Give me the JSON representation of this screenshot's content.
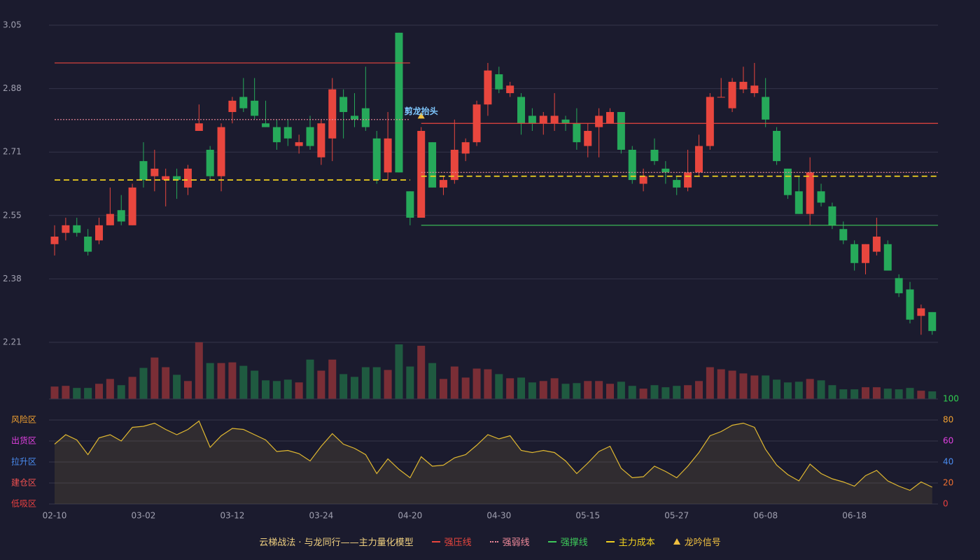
{
  "chart_data": [
    {
      "type": "candlestick",
      "ylim": [
        2.21,
        3.05
      ],
      "yticks": [
        3.05,
        {
          "value": 2.882,
          "label": "2.88"
        },
        {
          "value": 2.714,
          "label": "2.71"
        },
        {
          "value": 2.546,
          "label": "2.55"
        },
        {
          "value": 2.378,
          "label": "2.38"
        },
        2.21
      ],
      "grid": true,
      "up_color": "#e8463e",
      "down_color": "#26a95a",
      "open": [
        2.47,
        2.5,
        2.52,
        2.49,
        2.48,
        2.52,
        2.56,
        2.52,
        2.69,
        2.65,
        2.64,
        2.65,
        2.62,
        2.77,
        2.72,
        2.65,
        2.82,
        2.86,
        2.85,
        2.79,
        2.78,
        2.78,
        2.73,
        2.78,
        2.7,
        2.75,
        2.86,
        2.81,
        2.83,
        2.75,
        2.66,
        3.03,
        2.61,
        2.54,
        2.74,
        2.62,
        2.64,
        2.71,
        2.74,
        2.84,
        2.92,
        2.87,
        2.86,
        2.81,
        2.79,
        2.79,
        2.8,
        2.79,
        2.73,
        2.78,
        2.79,
        2.82,
        2.72,
        2.63,
        2.72,
        2.67,
        2.64,
        2.62,
        2.66,
        2.73,
        2.86,
        2.83,
        2.88,
        2.87,
        2.86,
        2.77,
        2.67,
        2.61,
        2.55,
        2.61,
        2.57,
        2.51,
        2.47,
        2.42,
        2.45,
        2.47,
        2.38,
        2.35,
        2.28,
        2.29
      ],
      "high": [
        2.52,
        2.54,
        2.54,
        2.51,
        2.54,
        2.62,
        2.6,
        2.63,
        2.74,
        2.72,
        2.67,
        2.67,
        2.68,
        2.84,
        2.73,
        2.79,
        2.86,
        2.91,
        2.91,
        2.85,
        2.8,
        2.8,
        2.76,
        2.81,
        2.8,
        2.91,
        2.88,
        2.87,
        2.94,
        2.77,
        2.82,
        3.03,
        2.61,
        2.78,
        2.74,
        2.65,
        2.8,
        2.75,
        2.85,
        2.95,
        2.94,
        2.9,
        2.87,
        2.83,
        2.82,
        2.87,
        2.81,
        2.83,
        2.79,
        2.83,
        2.83,
        2.82,
        2.73,
        2.67,
        2.75,
        2.69,
        2.65,
        2.72,
        2.76,
        2.87,
        2.91,
        2.91,
        2.94,
        2.95,
        2.91,
        2.78,
        2.67,
        2.65,
        2.7,
        2.63,
        2.58,
        2.53,
        2.48,
        2.47,
        2.54,
        2.48,
        2.39,
        2.37,
        2.31,
        2.29
      ],
      "low": [
        2.44,
        2.48,
        2.49,
        2.44,
        2.47,
        2.52,
        2.52,
        2.52,
        2.62,
        2.61,
        2.57,
        2.59,
        2.6,
        2.77,
        2.64,
        2.61,
        2.79,
        2.82,
        2.8,
        2.78,
        2.72,
        2.73,
        2.71,
        2.72,
        2.68,
        2.69,
        2.75,
        2.78,
        2.77,
        2.63,
        2.64,
        2.66,
        2.52,
        2.54,
        2.62,
        2.6,
        2.63,
        2.69,
        2.73,
        2.81,
        2.87,
        2.86,
        2.76,
        2.77,
        2.76,
        2.77,
        2.77,
        2.72,
        2.7,
        2.7,
        2.79,
        2.71,
        2.63,
        2.61,
        2.68,
        2.63,
        2.6,
        2.61,
        2.65,
        2.72,
        2.86,
        2.82,
        2.87,
        2.86,
        2.78,
        2.68,
        2.59,
        2.55,
        2.52,
        2.57,
        2.51,
        2.47,
        2.4,
        2.39,
        2.44,
        2.4,
        2.33,
        2.26,
        2.23,
        2.23
      ],
      "close": [
        2.49,
        2.52,
        2.5,
        2.45,
        2.52,
        2.55,
        2.53,
        2.62,
        2.64,
        2.67,
        2.65,
        2.64,
        2.67,
        2.79,
        2.65,
        2.78,
        2.85,
        2.83,
        2.81,
        2.78,
        2.74,
        2.75,
        2.74,
        2.73,
        2.79,
        2.88,
        2.82,
        2.8,
        2.78,
        2.64,
        2.75,
        2.66,
        2.54,
        2.77,
        2.62,
        2.64,
        2.72,
        2.74,
        2.84,
        2.93,
        2.88,
        2.89,
        2.79,
        2.79,
        2.81,
        2.81,
        2.79,
        2.74,
        2.77,
        2.81,
        2.82,
        2.72,
        2.64,
        2.65,
        2.69,
        2.66,
        2.62,
        2.66,
        2.73,
        2.86,
        2.86,
        2.9,
        2.9,
        2.89,
        2.8,
        2.69,
        2.6,
        2.55,
        2.66,
        2.58,
        2.52,
        2.48,
        2.42,
        2.47,
        2.49,
        2.4,
        2.34,
        2.27,
        2.3,
        2.24
      ],
      "series": [
        {
          "name": "强压线",
          "color": "#e8463e",
          "style": "solid",
          "values": [
            2.95,
            2.95,
            2.95,
            2.95,
            2.95,
            2.95,
            2.95,
            2.95,
            2.95,
            2.95,
            2.95,
            2.95,
            2.95,
            2.95,
            2.95,
            2.95,
            2.95,
            2.95,
            2.95,
            2.95,
            2.95,
            2.95,
            2.95,
            2.95,
            2.95,
            2.95,
            2.95,
            2.95,
            2.95,
            2.95,
            2.95,
            2.95,
            2.95,
            2.79,
            2.79,
            2.79,
            2.79,
            2.79,
            2.79,
            2.79,
            2.79,
            2.79,
            2.79,
            2.79,
            2.79,
            2.79,
            2.79,
            2.79,
            2.79,
            2.79,
            2.79,
            2.79,
            2.79,
            2.79,
            2.79,
            2.79,
            2.79,
            2.79,
            2.79,
            2.79,
            2.79,
            2.79,
            2.79,
            2.79,
            2.79,
            2.79,
            2.79,
            2.79,
            2.79,
            2.79,
            2.79,
            2.79,
            2.79,
            2.79,
            2.79,
            2.79,
            2.79,
            2.79,
            2.79,
            2.79,
            2.79
          ]
        },
        {
          "name": "强弱线",
          "color": "#f08a9a",
          "style": "dotted",
          "values": [
            2.8,
            2.8,
            2.8,
            2.8,
            2.8,
            2.8,
            2.8,
            2.8,
            2.8,
            2.8,
            2.8,
            2.8,
            2.8,
            2.8,
            2.8,
            2.8,
            2.8,
            2.8,
            2.8,
            2.8,
            2.8,
            2.8,
            2.8,
            2.8,
            2.8,
            2.8,
            2.8,
            2.8,
            2.8,
            2.8,
            2.8,
            2.8,
            2.8,
            2.66,
            2.66,
            2.66,
            2.66,
            2.66,
            2.66,
            2.66,
            2.66,
            2.66,
            2.66,
            2.66,
            2.66,
            2.66,
            2.66,
            2.66,
            2.66,
            2.66,
            2.66,
            2.66,
            2.66,
            2.66,
            2.66,
            2.66,
            2.66,
            2.66,
            2.66,
            2.66,
            2.66,
            2.66,
            2.66,
            2.66,
            2.66,
            2.66,
            2.66,
            2.66,
            2.66,
            2.66,
            2.66,
            2.66,
            2.66,
            2.66,
            2.66,
            2.66,
            2.66,
            2.66,
            2.66,
            2.66,
            2.66
          ]
        },
        {
          "name": "强撑线",
          "color": "#3ec85a",
          "style": "solid",
          "values": [
            null,
            null,
            null,
            null,
            null,
            null,
            null,
            null,
            null,
            null,
            null,
            null,
            null,
            null,
            null,
            null,
            null,
            null,
            null,
            null,
            null,
            null,
            null,
            null,
            null,
            null,
            null,
            null,
            null,
            null,
            null,
            null,
            null,
            2.52,
            2.52,
            2.52,
            2.52,
            2.52,
            2.52,
            2.52,
            2.52,
            2.52,
            2.52,
            2.52,
            2.52,
            2.52,
            2.52,
            2.52,
            2.52,
            2.52,
            2.52,
            2.52,
            2.52,
            2.52,
            2.52,
            2.52,
            2.52,
            2.52,
            2.52,
            2.52,
            2.52,
            2.52,
            2.52,
            2.52,
            2.52,
            2.52,
            2.52,
            2.52,
            2.52,
            2.52,
            2.52,
            2.52,
            2.52,
            2.52,
            2.52,
            2.52,
            2.52,
            2.52,
            2.52,
            2.52,
            2.52
          ]
        },
        {
          "name": "主力成本",
          "color": "#f0d020",
          "style": "dashed",
          "values": [
            2.64,
            2.64,
            2.64,
            2.64,
            2.64,
            2.64,
            2.64,
            2.64,
            2.64,
            2.64,
            2.64,
            2.64,
            2.64,
            2.64,
            2.64,
            2.64,
            2.64,
            2.64,
            2.64,
            2.64,
            2.64,
            2.64,
            2.64,
            2.64,
            2.64,
            2.64,
            2.64,
            2.64,
            2.64,
            2.64,
            2.64,
            2.64,
            2.64,
            2.65,
            2.65,
            2.65,
            2.65,
            2.65,
            2.65,
            2.65,
            2.65,
            2.65,
            2.65,
            2.65,
            2.65,
            2.65,
            2.65,
            2.65,
            2.65,
            2.65,
            2.65,
            2.65,
            2.65,
            2.65,
            2.65,
            2.65,
            2.65,
            2.65,
            2.65,
            2.65,
            2.65,
            2.65,
            2.65,
            2.65,
            2.65,
            2.65,
            2.65,
            2.65,
            2.65,
            2.65,
            2.65,
            2.65,
            2.65,
            2.65,
            2.65,
            2.65,
            2.65,
            2.65,
            2.65,
            2.65,
            2.65
          ]
        },
        {
          "name": "龙吟信号",
          "color": "#f0c040",
          "style": "signal",
          "values": [
            null,
            null,
            null,
            null,
            null,
            null,
            null,
            null,
            null,
            null,
            null,
            null,
            null,
            null,
            null,
            null,
            null,
            null,
            null,
            null,
            null,
            null,
            null,
            null,
            null,
            null,
            null,
            null,
            null,
            null,
            null,
            null,
            null,
            2.81,
            null,
            null,
            null,
            null,
            null,
            null,
            null,
            null,
            null,
            null,
            null,
            null,
            null,
            null,
            null,
            null,
            null,
            null,
            null,
            null,
            null,
            null,
            null,
            null,
            null,
            null,
            null,
            null,
            null,
            null,
            null,
            null,
            null,
            null,
            null,
            null,
            null,
            null,
            null,
            null,
            null,
            null,
            null,
            null,
            null,
            null
          ]
        }
      ],
      "annotations": [
        {
          "text": "剪龙抬头",
          "x": 33,
          "y": 2.81,
          "color": "#7fc8ff"
        }
      ]
    },
    {
      "type": "bar",
      "up_color": "#7a2e36",
      "down_color": "#1f5a40",
      "values": [
        18,
        19,
        16,
        16,
        22,
        29,
        20,
        32,
        45,
        60,
        46,
        35,
        26,
        82,
        52,
        52,
        53,
        48,
        41,
        27,
        26,
        28,
        24,
        57,
        41,
        57,
        36,
        32,
        46,
        46,
        42,
        79,
        47,
        77,
        52,
        29,
        47,
        31,
        44,
        43,
        36,
        30,
        31,
        24,
        26,
        30,
        22,
        23,
        26,
        26,
        22,
        25,
        19,
        15,
        20,
        17,
        19,
        20,
        26,
        46,
        43,
        41,
        37,
        34,
        34,
        28,
        24,
        25,
        29,
        27,
        20,
        14,
        14,
        17,
        17,
        15,
        14,
        16,
        12,
        11
      ]
    },
    {
      "type": "area",
      "color": "#e0b830",
      "ylim": [
        0,
        100
      ],
      "yticks": [
        0,
        20,
        40,
        60,
        80,
        100
      ],
      "ytick_colors": [
        "#e84040",
        "#f07030",
        "#4a8cf0",
        "#e040e0",
        "#f0a030",
        "#30d050"
      ],
      "zones": [
        {
          "label": "风险区",
          "value": 80,
          "color": "#f0a030"
        },
        {
          "label": "出货区",
          "value": 60,
          "color": "#e040e0"
        },
        {
          "label": "拉升区",
          "value": 40,
          "color": "#4a8cf0"
        },
        {
          "label": "建仓区",
          "value": 20,
          "color": "#f05050"
        },
        {
          "label": "低吸区",
          "value": 0,
          "color": "#e84040"
        }
      ],
      "categories": [
        "02-10",
        null,
        null,
        null,
        null,
        null,
        null,
        null,
        "03-02",
        null,
        null,
        null,
        null,
        null,
        null,
        null,
        "03-12",
        null,
        null,
        null,
        null,
        null,
        null,
        null,
        "03-24",
        null,
        null,
        null,
        null,
        null,
        null,
        null,
        "04-20",
        null,
        null,
        null,
        null,
        null,
        null,
        null,
        "04-30",
        null,
        null,
        null,
        null,
        null,
        null,
        null,
        "05-15",
        null,
        null,
        null,
        null,
        null,
        null,
        null,
        "05-27",
        null,
        null,
        null,
        null,
        null,
        null,
        null,
        "06-08",
        null,
        null,
        null,
        null,
        null,
        null,
        null,
        "06-18",
        null,
        null,
        null,
        null,
        null,
        null,
        null
      ],
      "values": [
        57,
        66,
        61,
        47,
        63,
        66,
        60,
        73,
        74,
        77,
        71,
        66,
        71,
        79,
        54,
        65,
        72,
        71,
        66,
        61,
        50,
        51,
        48,
        41,
        55,
        67,
        57,
        53,
        47,
        29,
        43,
        33,
        25,
        45,
        36,
        37,
        44,
        47,
        56,
        66,
        62,
        65,
        51,
        49,
        51,
        49,
        41,
        29,
        39,
        50,
        55,
        34,
        25,
        26,
        36,
        31,
        25,
        36,
        49,
        65,
        69,
        75,
        77,
        73,
        52,
        37,
        28,
        22,
        38,
        29,
        24,
        21,
        17,
        27,
        32,
        22,
        17,
        13,
        21,
        16
      ]
    }
  ],
  "legend_title": "云梯战法 · 与龙同行——主力量化模型"
}
